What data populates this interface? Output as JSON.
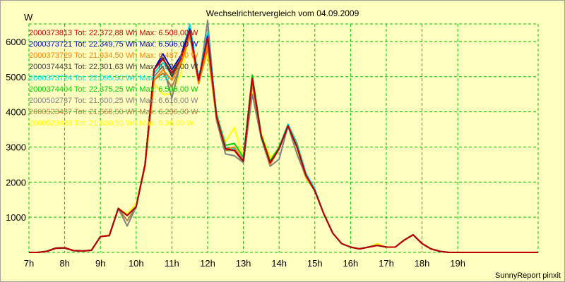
{
  "chart_data": {
    "type": "line",
    "title": "Wechselrichtervergleich vom 04.09.2009",
    "ylabel": "W",
    "xlabel": "",
    "footer": "SunnyReport pinxit",
    "xlim": [
      7,
      21.25
    ],
    "ylim": [
      0,
      6500
    ],
    "grid": true,
    "background": "#ffffc0",
    "grid_color": "#00c000",
    "xticks": [
      7,
      8,
      9,
      10,
      11,
      12,
      13,
      14,
      15,
      16,
      17,
      18,
      19
    ],
    "xtick_labels": [
      "7h",
      "8h",
      "9h",
      "10h",
      "11h",
      "12h",
      "13h",
      "14h",
      "15h",
      "16h",
      "17h",
      "18h",
      "19h"
    ],
    "yticks": [
      1000,
      2000,
      3000,
      4000,
      5000,
      6000
    ],
    "ytick_labels": [
      "1000",
      "2000",
      "3000",
      "4000",
      "5000",
      "6000"
    ],
    "legend_position": "top-left",
    "x": [
      7,
      7.25,
      7.5,
      7.75,
      8,
      8.25,
      8.5,
      8.75,
      9,
      9.25,
      9.5,
      9.75,
      10,
      10.25,
      10.5,
      10.75,
      11,
      11.25,
      11.5,
      11.75,
      12,
      12.25,
      12.5,
      12.75,
      13,
      13.25,
      13.5,
      13.75,
      14,
      14.25,
      14.5,
      14.75,
      15,
      15.25,
      15.5,
      15.75,
      16,
      16.25,
      16.5,
      16.75,
      17,
      17.25,
      17.5,
      17.75,
      18,
      18.25,
      18.5,
      18.75,
      19,
      19.25,
      19.5,
      19.75,
      20,
      20.25,
      20.5,
      20.75,
      21,
      21.25
    ],
    "series": [
      {
        "name": "2000373813",
        "text": "2000373813 Tot: 22.372,88 Wh Max: 6.508,00 W",
        "color": "#c00000",
        "values": [
          0,
          0,
          30,
          120,
          130,
          50,
          40,
          60,
          450,
          480,
          1250,
          1050,
          1300,
          2500,
          5200,
          5500,
          5100,
          5500,
          6300,
          4900,
          6100,
          3850,
          2950,
          2900,
          2600,
          4950,
          3300,
          2550,
          2950,
          3600,
          3000,
          2200,
          1750,
          1100,
          550,
          250,
          150,
          100,
          150,
          200,
          150,
          150,
          350,
          500,
          250,
          100,
          30,
          0,
          0,
          0,
          0,
          0,
          0,
          0,
          0,
          0,
          0,
          0
        ]
      },
      {
        "name": "2000373721",
        "text": "2000373721 Tot: 22.349,75 Wh Max: 6.506,00 W",
        "color": "#0000c0",
        "values": [
          0,
          0,
          30,
          120,
          130,
          50,
          40,
          60,
          450,
          480,
          1250,
          1050,
          1300,
          2500,
          5200,
          5650,
          5200,
          5600,
          6350,
          4900,
          6150,
          3850,
          2950,
          2900,
          2600,
          4950,
          3300,
          2550,
          2950,
          3600,
          3000,
          2200,
          1750,
          1100,
          550,
          250,
          150,
          100,
          150,
          200,
          150,
          150,
          350,
          500,
          250,
          100,
          30,
          0,
          0,
          0,
          0,
          0,
          0,
          0,
          0,
          0,
          0,
          0
        ]
      },
      {
        "name": "2000373729",
        "text": "2000373729 Tot: 21.934,50 Wh Max: 6.487,00 W",
        "color": "#ff8000",
        "values": [
          0,
          0,
          30,
          120,
          130,
          50,
          40,
          60,
          450,
          480,
          1250,
          1050,
          1300,
          2450,
          4900,
          5200,
          4900,
          5400,
          6200,
          4800,
          5900,
          3800,
          2950,
          3000,
          2600,
          4800,
          3300,
          2500,
          2950,
          3600,
          3000,
          2150,
          1750,
          1100,
          550,
          250,
          150,
          100,
          150,
          200,
          150,
          150,
          350,
          500,
          250,
          100,
          30,
          0,
          0,
          0,
          0,
          0,
          0,
          0,
          0,
          0,
          0,
          0
        ]
      },
      {
        "name": "2000374431",
        "text": "2000374431 Tot: 22.301,63 Wh Max: 6.521,00 W",
        "color": "#404040",
        "values": [
          0,
          0,
          30,
          120,
          130,
          50,
          40,
          60,
          450,
          480,
          1250,
          1050,
          1300,
          2500,
          5200,
          5550,
          5000,
          5500,
          6300,
          4900,
          6100,
          3850,
          2950,
          2900,
          2600,
          4950,
          3300,
          2550,
          2950,
          3600,
          3000,
          2200,
          1750,
          1100,
          550,
          250,
          150,
          100,
          150,
          200,
          150,
          150,
          350,
          500,
          250,
          100,
          30,
          0,
          0,
          0,
          0,
          0,
          0,
          0,
          0,
          0,
          0,
          0
        ]
      },
      {
        "name": "2000373724",
        "text": "2000373724 Tot: 22.095,50 Wh Max: 6.5",
        "color": "#00e0e0",
        "values": [
          0,
          0,
          30,
          120,
          130,
          50,
          40,
          60,
          450,
          480,
          1250,
          1050,
          1300,
          2500,
          5100,
          5400,
          5050,
          5550,
          6500,
          4950,
          6250,
          3900,
          3000,
          2950,
          2650,
          4900,
          3250,
          2550,
          2950,
          3650,
          3050,
          2250,
          1800,
          1100,
          550,
          250,
          150,
          100,
          150,
          200,
          150,
          150,
          350,
          500,
          250,
          100,
          30,
          0,
          0,
          0,
          0,
          0,
          0,
          0,
          0,
          0,
          0,
          0
        ]
      },
      {
        "name": "2000374404",
        "text": "2000374404 Tot: 22.375,25 Wh Max: 6.506,00 W",
        "color": "#00d000",
        "values": [
          0,
          0,
          30,
          120,
          130,
          50,
          40,
          60,
          450,
          480,
          1250,
          1050,
          1300,
          2500,
          5200,
          5500,
          5100,
          5550,
          6400,
          4950,
          6200,
          3950,
          3050,
          3100,
          2700,
          5050,
          3350,
          2600,
          3000,
          3650,
          3100,
          2250,
          1800,
          1100,
          550,
          250,
          150,
          100,
          150,
          200,
          150,
          150,
          350,
          500,
          250,
          100,
          30,
          0,
          0,
          0,
          0,
          0,
          0,
          0,
          0,
          0,
          0,
          0
        ]
      },
      {
        "name": "2000502737",
        "text": "2000502737 Tot: 21.600,25 Wh Max: 6.616,00 W",
        "color": "#808080",
        "values": [
          0,
          0,
          30,
          110,
          120,
          50,
          40,
          60,
          450,
          480,
          1250,
          750,
          1300,
          2500,
          5000,
          5300,
          4400,
          5400,
          6300,
          4800,
          6600,
          3750,
          2800,
          2750,
          2550,
          4500,
          3250,
          2450,
          2650,
          3600,
          2800,
          2150,
          1750,
          1100,
          550,
          250,
          150,
          100,
          150,
          200,
          150,
          150,
          350,
          500,
          250,
          100,
          30,
          0,
          0,
          0,
          0,
          0,
          0,
          0,
          0,
          0,
          0,
          0
        ]
      },
      {
        "name": "2000523437",
        "text": "2000523437 Tot: 21.668,50 Wh Max: 6.296,00 W",
        "color": "#b08040",
        "values": [
          0,
          0,
          30,
          120,
          130,
          50,
          40,
          60,
          450,
          480,
          1250,
          900,
          1300,
          2500,
          4900,
          5100,
          4700,
          5350,
          6150,
          4800,
          5800,
          3800,
          2900,
          2900,
          2550,
          4800,
          3300,
          2500,
          2950,
          3600,
          3000,
          2150,
          1750,
          1100,
          550,
          250,
          150,
          100,
          150,
          200,
          150,
          150,
          350,
          500,
          250,
          100,
          30,
          0,
          0,
          0,
          0,
          0,
          0,
          0,
          0,
          0,
          0,
          0
        ]
      },
      {
        "name": "2000523438",
        "text": "2000523438 Tot: 21.630,50 Wh Max: 6.36,00 W",
        "color": "#ffff00",
        "values": [
          0,
          0,
          30,
          120,
          130,
          50,
          40,
          60,
          450,
          500,
          1250,
          1100,
          1400,
          2450,
          4800,
          4500,
          4500,
          5100,
          6150,
          4850,
          5650,
          3800,
          3150,
          3550,
          2650,
          4550,
          3400,
          2700,
          2950,
          3650,
          2950,
          2100,
          1750,
          1100,
          550,
          250,
          150,
          100,
          150,
          250,
          150,
          150,
          350,
          500,
          250,
          100,
          30,
          0,
          0,
          0,
          0,
          0,
          0,
          0,
          0,
          0,
          0,
          0
        ]
      }
    ]
  }
}
